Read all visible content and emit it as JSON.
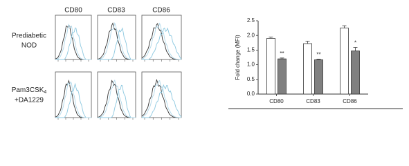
{
  "panels": {
    "columns": [
      "CD80",
      "CD83",
      "CD86"
    ],
    "rows": [
      {
        "label_lines": [
          "Prediabetic",
          "NOD"
        ]
      },
      {
        "label_main": "Pam3CSK",
        "label_sub": "4",
        "label_line2": "+DA1229"
      }
    ]
  },
  "chart_data": {
    "type": "bar",
    "y_label": "Fold change (MFI)",
    "categories": [
      "CD80",
      "CD83",
      "CD86"
    ],
    "series": [
      {
        "color": "#ffffff",
        "values": [
          1.9,
          1.72,
          2.25
        ],
        "errors": [
          0.04,
          0.08,
          0.08
        ]
      },
      {
        "color": "#808080",
        "values": [
          1.2,
          1.17,
          1.47
        ],
        "errors": [
          0.03,
          0.02,
          0.12
        ],
        "annotations": [
          "**",
          "**",
          "*"
        ]
      }
    ],
    "ylim": [
      0,
      2.5
    ],
    "yticks": [
      {
        "value": 0,
        "label": "0.0"
      },
      0.5,
      {
        "value": 1,
        "label": "1.0"
      },
      1.5,
      {
        "value": 2,
        "label": "2.0"
      },
      2.5
    ]
  }
}
